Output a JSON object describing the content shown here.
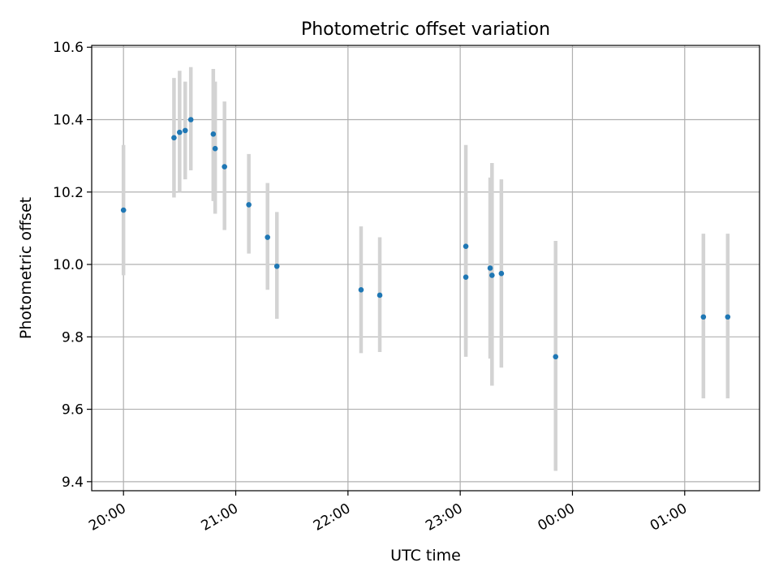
{
  "chart_data": {
    "type": "scatter",
    "title": "Photometric offset variation",
    "xlabel": "UTC time",
    "ylabel": "Photometric offset",
    "x_tick_labels": [
      "20:00",
      "21:00",
      "22:00",
      "23:00",
      "00:00",
      "01:00"
    ],
    "x_tick_times": [
      "20:00",
      "21:00",
      "22:00",
      "23:00",
      "00:00",
      "01:00"
    ],
    "y_ticks": [
      9.4,
      9.6,
      9.8,
      10.0,
      10.2,
      10.4,
      10.6
    ],
    "y_tick_labels": [
      "9.4",
      "9.6",
      "9.8",
      "10.0",
      "10.2",
      "10.4",
      "10.6"
    ],
    "xlim": [
      "19:43",
      "01:40"
    ],
    "ylim": [
      9.375,
      10.605
    ],
    "grid": true,
    "colors": {
      "points": "#1f77b4",
      "errorbars": "#d3d3d3",
      "grid": "#b0b0b0"
    },
    "series": [
      {
        "points": [
          {
            "x": "20:00",
            "y": 10.15,
            "low": 9.97,
            "high": 10.33
          },
          {
            "x": "20:27",
            "y": 10.35,
            "low": 10.185,
            "high": 10.515
          },
          {
            "x": "20:30",
            "y": 10.365,
            "low": 10.2,
            "high": 10.535
          },
          {
            "x": "20:33",
            "y": 10.37,
            "low": 10.235,
            "high": 10.505
          },
          {
            "x": "20:36",
            "y": 10.4,
            "low": 10.26,
            "high": 10.545
          },
          {
            "x": "20:48",
            "y": 10.36,
            "low": 10.175,
            "high": 10.54
          },
          {
            "x": "20:49",
            "y": 10.32,
            "low": 10.14,
            "high": 10.505
          },
          {
            "x": "20:54",
            "y": 10.27,
            "low": 10.095,
            "high": 10.45
          },
          {
            "x": "21:07",
            "y": 10.165,
            "low": 10.03,
            "high": 10.305
          },
          {
            "x": "21:17",
            "y": 10.075,
            "low": 9.93,
            "high": 10.225
          },
          {
            "x": "21:22",
            "y": 9.995,
            "low": 9.85,
            "high": 10.145
          },
          {
            "x": "22:07",
            "y": 9.93,
            "low": 9.755,
            "high": 10.105
          },
          {
            "x": "22:17",
            "y": 9.915,
            "low": 9.758,
            "high": 10.075
          },
          {
            "x": "23:03",
            "y": 9.965,
            "low": 9.745,
            "high": 10.185
          },
          {
            "x": "23:03",
            "y": 10.05,
            "low": 9.765,
            "high": 10.33
          },
          {
            "x": "23:16",
            "y": 9.99,
            "low": 9.74,
            "high": 10.24
          },
          {
            "x": "23:17",
            "y": 9.97,
            "low": 9.665,
            "high": 10.28
          },
          {
            "x": "23:22",
            "y": 9.975,
            "low": 9.715,
            "high": 10.235
          },
          {
            "x": "23:51",
            "y": 9.745,
            "low": 9.43,
            "high": 10.065
          },
          {
            "x": "01:10",
            "y": 9.855,
            "low": 9.63,
            "high": 10.085
          },
          {
            "x": "01:23",
            "y": 9.855,
            "low": 9.63,
            "high": 10.085
          }
        ]
      }
    ]
  }
}
